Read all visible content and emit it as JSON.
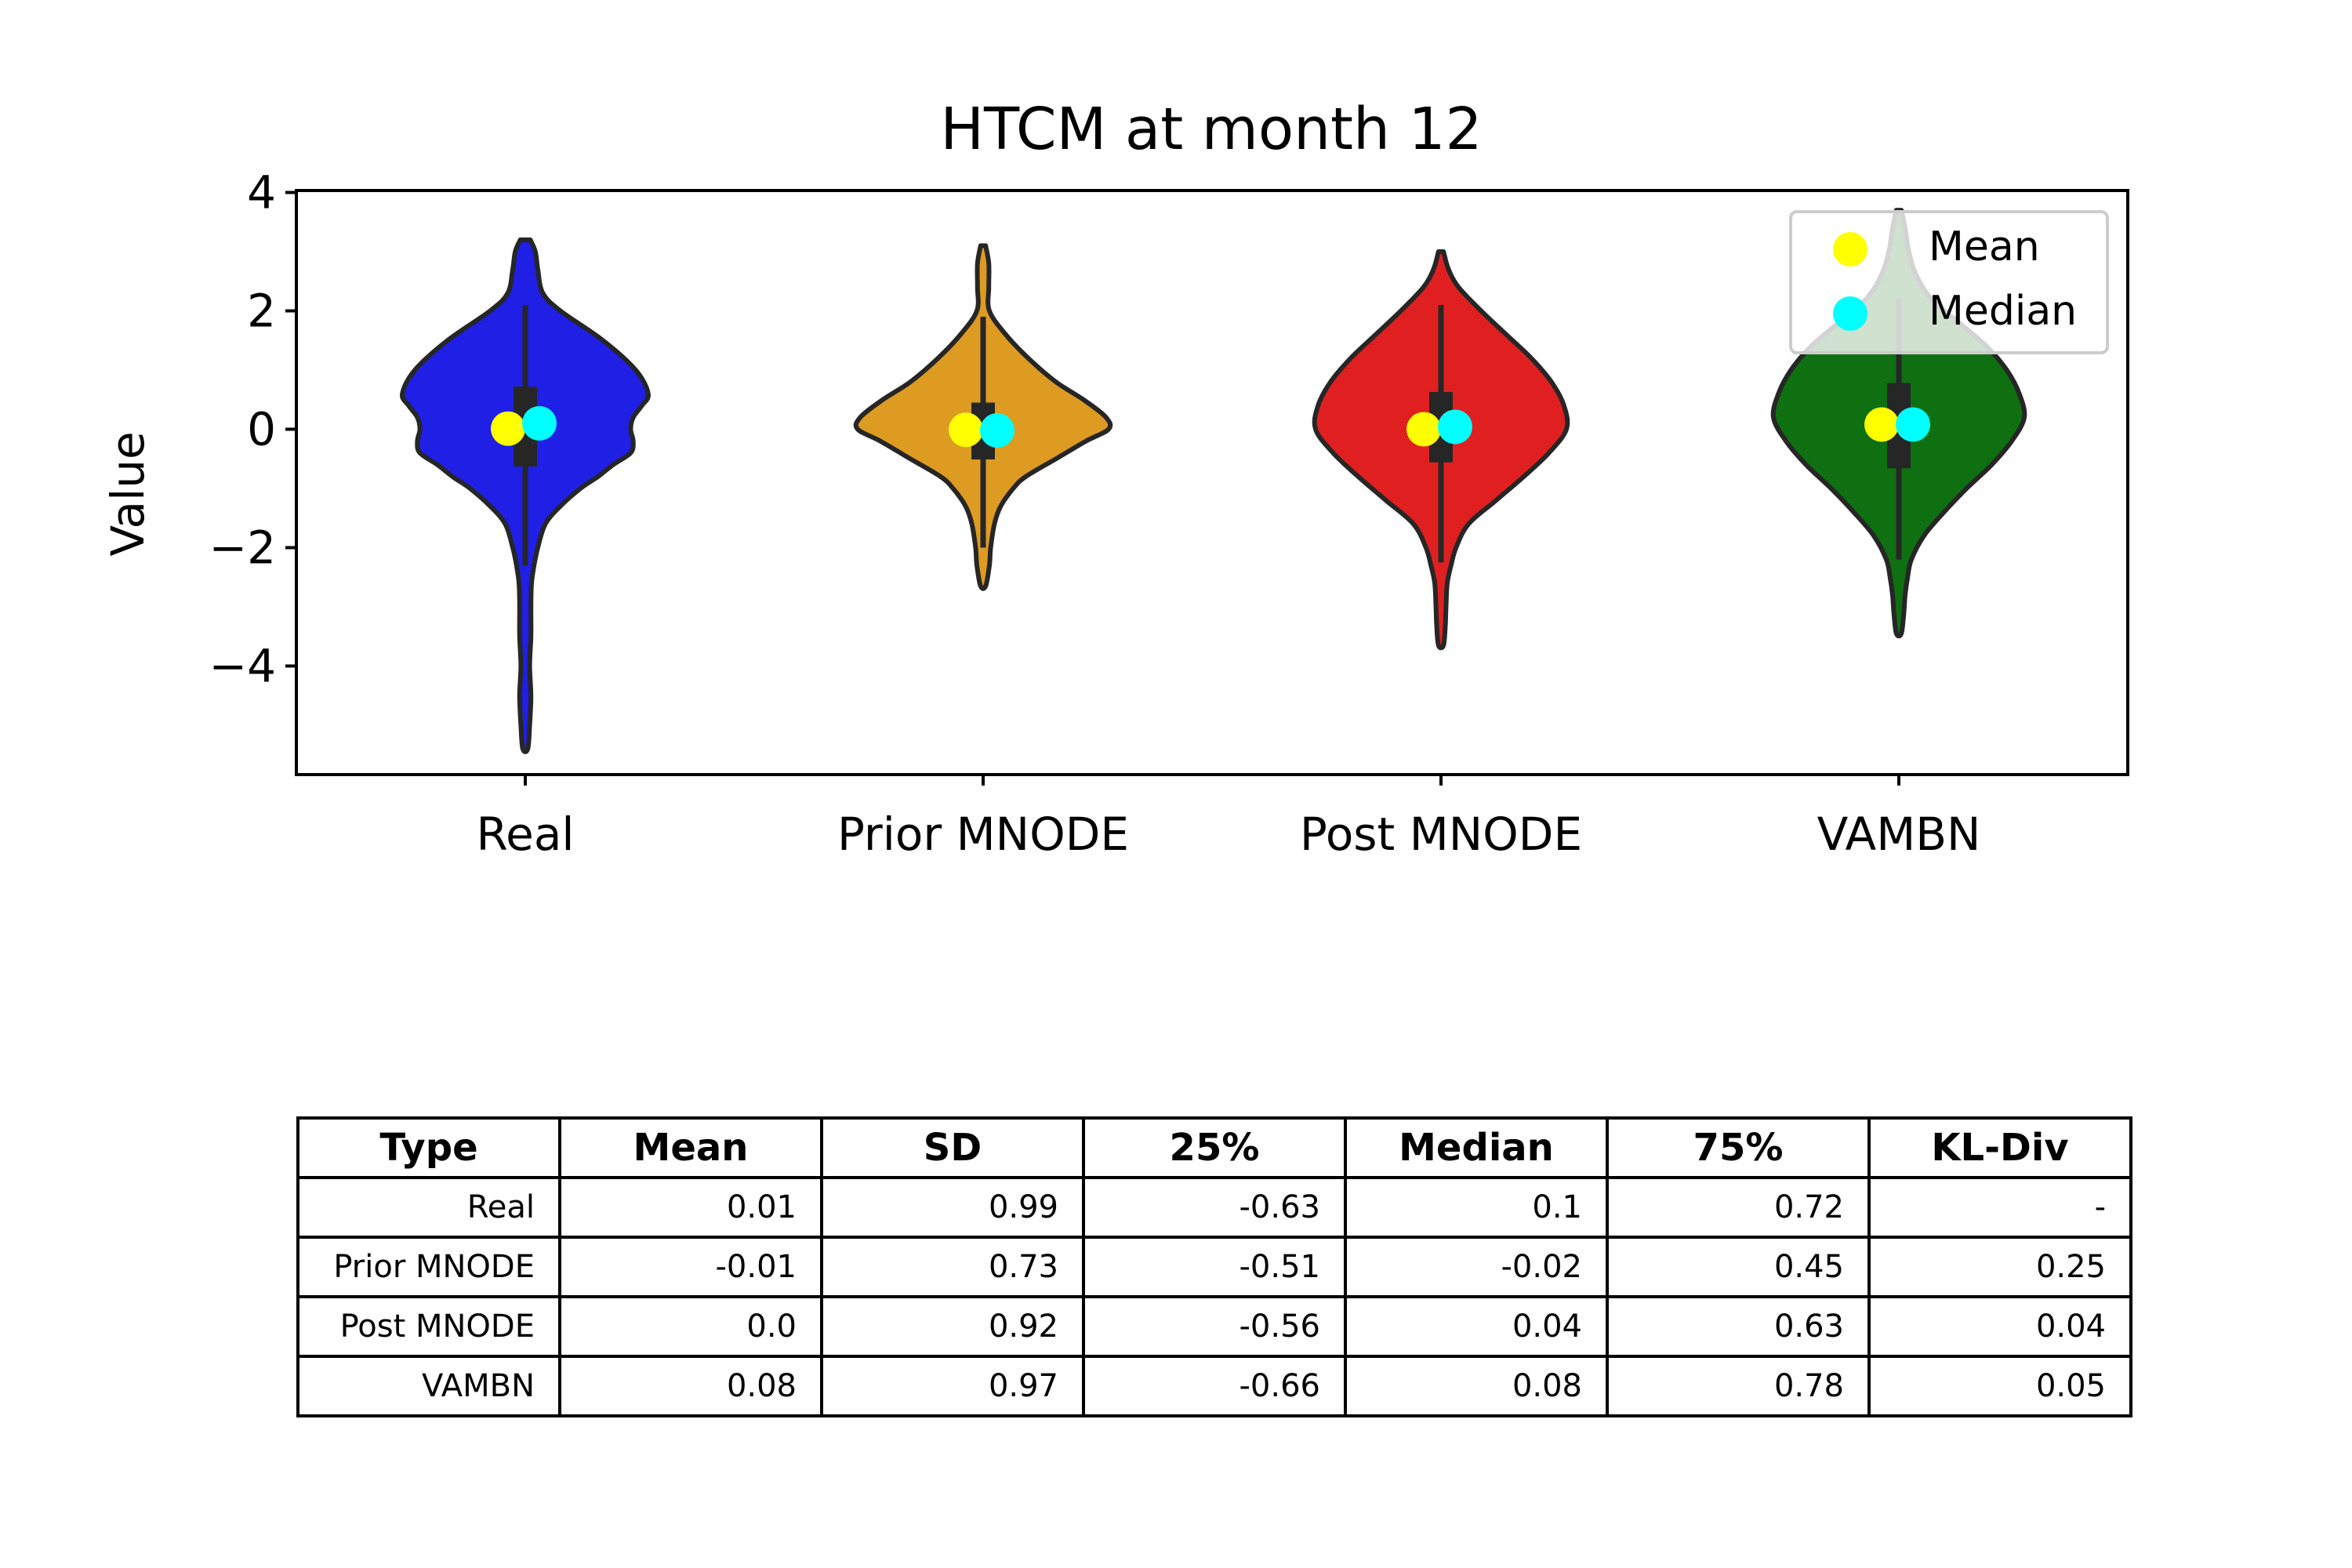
{
  "chart_data": {
    "type": "violin",
    "title": "HTCM at month 12",
    "xlabel": "",
    "ylabel": "Value",
    "ylim": [
      -5.8,
      4.1
    ],
    "yticks": [
      4,
      2,
      0,
      -2,
      -4
    ],
    "ytick_labels": [
      "4",
      "2",
      "0",
      "−2",
      "−4"
    ],
    "grid": false,
    "legend_position": "top-right",
    "legend": [
      {
        "label": "Mean",
        "color": "#ffff00"
      },
      {
        "label": "Median",
        "color": "#00ffff"
      }
    ],
    "categories": [
      "Real",
      "Prior MNODE",
      "Post MNODE",
      "VAMBN"
    ],
    "series": [
      {
        "category": "Real",
        "color": "#1f1fe6",
        "mean": 0.01,
        "median": 0.1,
        "q1": -0.63,
        "q3": 0.72,
        "whisker_low": -2.3,
        "whisker_high": 2.1,
        "min": -5.4,
        "max": 3.2,
        "density_y": [
          3.2,
          3.0,
          2.7,
          2.3,
          2.0,
          1.5,
          1.0,
          0.6,
          0.4,
          0.2,
          0.0,
          -0.2,
          -0.4,
          -0.6,
          -0.8,
          -1.0,
          -1.3,
          -1.6,
          -2.0,
          -2.3,
          -2.6,
          -3.0,
          -3.5,
          -4.0,
          -4.5,
          -5.0,
          -5.4
        ],
        "density_width": [
          0.04,
          0.08,
          0.1,
          0.14,
          0.28,
          0.62,
          0.88,
          0.98,
          0.93,
          0.86,
          0.84,
          0.86,
          0.84,
          0.7,
          0.58,
          0.44,
          0.28,
          0.16,
          0.1,
          0.07,
          0.05,
          0.045,
          0.045,
          0.035,
          0.045,
          0.035,
          0.02
        ]
      },
      {
        "category": "Prior MNODE",
        "color": "#de9b21",
        "mean": -0.01,
        "median": -0.02,
        "q1": -0.51,
        "q3": 0.45,
        "whisker_low": -2.0,
        "whisker_high": 1.9,
        "min": -2.65,
        "max": 3.1,
        "density_y": [
          3.1,
          2.8,
          2.4,
          2.0,
          1.6,
          1.2,
          0.8,
          0.5,
          0.2,
          0.0,
          -0.2,
          -0.5,
          -0.8,
          -1.0,
          -1.3,
          -1.6,
          -2.0,
          -2.3,
          -2.65
        ],
        "density_width": [
          0.02,
          0.045,
          0.045,
          0.05,
          0.18,
          0.36,
          0.58,
          0.8,
          0.98,
          1.0,
          0.82,
          0.58,
          0.34,
          0.24,
          0.14,
          0.09,
          0.06,
          0.05,
          0.02
        ]
      },
      {
        "category": "Post MNODE",
        "color": "#e02020",
        "mean": 0.0,
        "median": 0.04,
        "q1": -0.56,
        "q3": 0.63,
        "whisker_low": -2.25,
        "whisker_high": 2.1,
        "min": -3.65,
        "max": 3.0,
        "density_y": [
          3.0,
          2.7,
          2.4,
          2.0,
          1.6,
          1.2,
          0.8,
          0.4,
          0.0,
          -0.4,
          -0.8,
          -1.2,
          -1.6,
          -2.0,
          -2.3,
          -2.6,
          -3.0,
          -3.3,
          -3.65
        ],
        "density_width": [
          0.02,
          0.06,
          0.14,
          0.32,
          0.52,
          0.72,
          0.88,
          0.98,
          1.0,
          0.86,
          0.66,
          0.44,
          0.22,
          0.12,
          0.08,
          0.05,
          0.04,
          0.035,
          0.02
        ]
      },
      {
        "category": "VAMBN",
        "color": "#0e7010",
        "mean": 0.08,
        "median": 0.08,
        "q1": -0.66,
        "q3": 0.78,
        "whisker_low": -2.2,
        "whisker_high": 2.2,
        "min": -3.45,
        "max": 3.7,
        "density_y": [
          3.7,
          3.4,
          3.0,
          2.6,
          2.2,
          1.8,
          1.4,
          1.0,
          0.6,
          0.2,
          -0.2,
          -0.6,
          -1.0,
          -1.4,
          -1.8,
          -2.2,
          -2.5,
          -2.8,
          -3.1,
          -3.45
        ],
        "density_width": [
          0.02,
          0.05,
          0.08,
          0.14,
          0.26,
          0.48,
          0.7,
          0.86,
          0.96,
          1.0,
          0.9,
          0.74,
          0.54,
          0.36,
          0.2,
          0.1,
          0.07,
          0.05,
          0.04,
          0.02
        ]
      }
    ]
  },
  "table": {
    "headers": [
      "Type",
      "Mean",
      "SD",
      "25%",
      "Median",
      "75%",
      "KL-Div"
    ],
    "rows": [
      [
        "Real",
        "0.01",
        "0.99",
        "-0.63",
        "0.1",
        "0.72",
        "-"
      ],
      [
        "Prior MNODE",
        "-0.01",
        "0.73",
        "-0.51",
        "-0.02",
        "0.45",
        "0.25"
      ],
      [
        "Post MNODE",
        "0.0",
        "0.92",
        "-0.56",
        "0.04",
        "0.63",
        "0.04"
      ],
      [
        "VAMBN",
        "0.08",
        "0.97",
        "-0.66",
        "0.08",
        "0.78",
        "0.05"
      ]
    ]
  }
}
